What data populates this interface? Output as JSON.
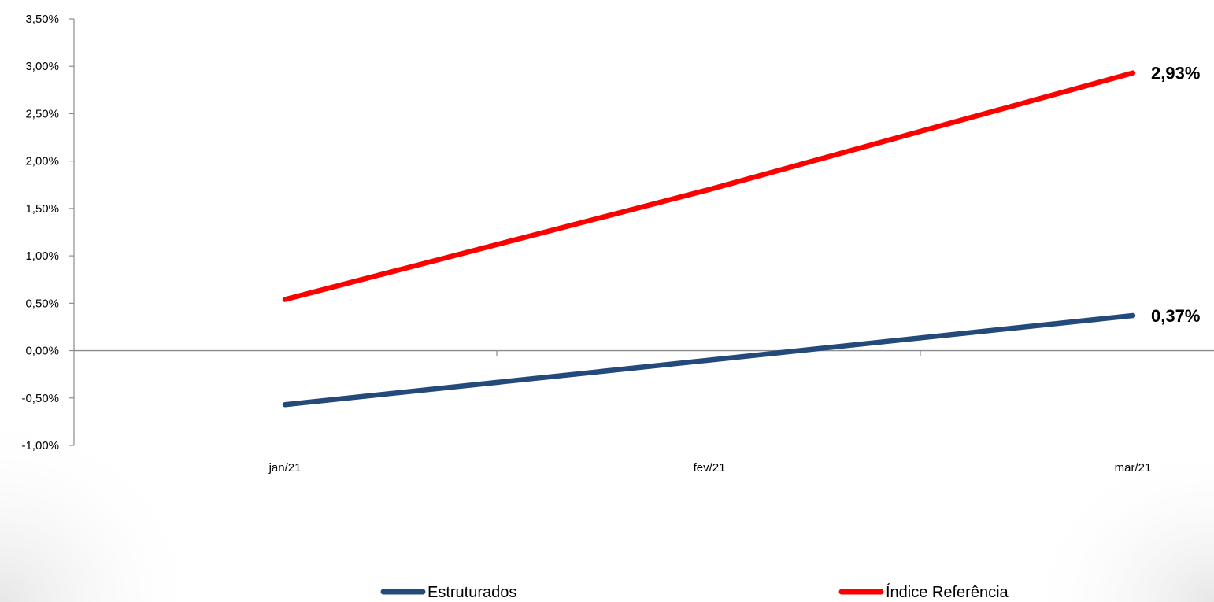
{
  "chart_data": {
    "type": "line",
    "categories": [
      "jan/21",
      "fev/21",
      "mar/21"
    ],
    "series": [
      {
        "name": "Estruturados",
        "values": [
          -0.57,
          -0.1,
          0.37
        ],
        "color": "#244a7b",
        "end_label": "0,37%"
      },
      {
        "name": "Índice Referência",
        "values": [
          0.54,
          1.7,
          2.93
        ],
        "color": "#ff0000",
        "end_label": "2,93%"
      }
    ],
    "ylim": [
      -1.0,
      3.5
    ],
    "y_ticks": [
      -1.0,
      -0.5,
      0.0,
      0.5,
      1.0,
      1.5,
      2.0,
      2.5,
      3.0,
      3.5
    ],
    "y_tick_labels": [
      "-1,00%",
      "-0,50%",
      "0,00%",
      "0,50%",
      "1,00%",
      "1,50%",
      "2,00%",
      "2,50%",
      "3,00%",
      "3,50%"
    ],
    "title": "",
    "xlabel": "",
    "ylabel": "",
    "grid": false,
    "legend_position": "bottom"
  }
}
